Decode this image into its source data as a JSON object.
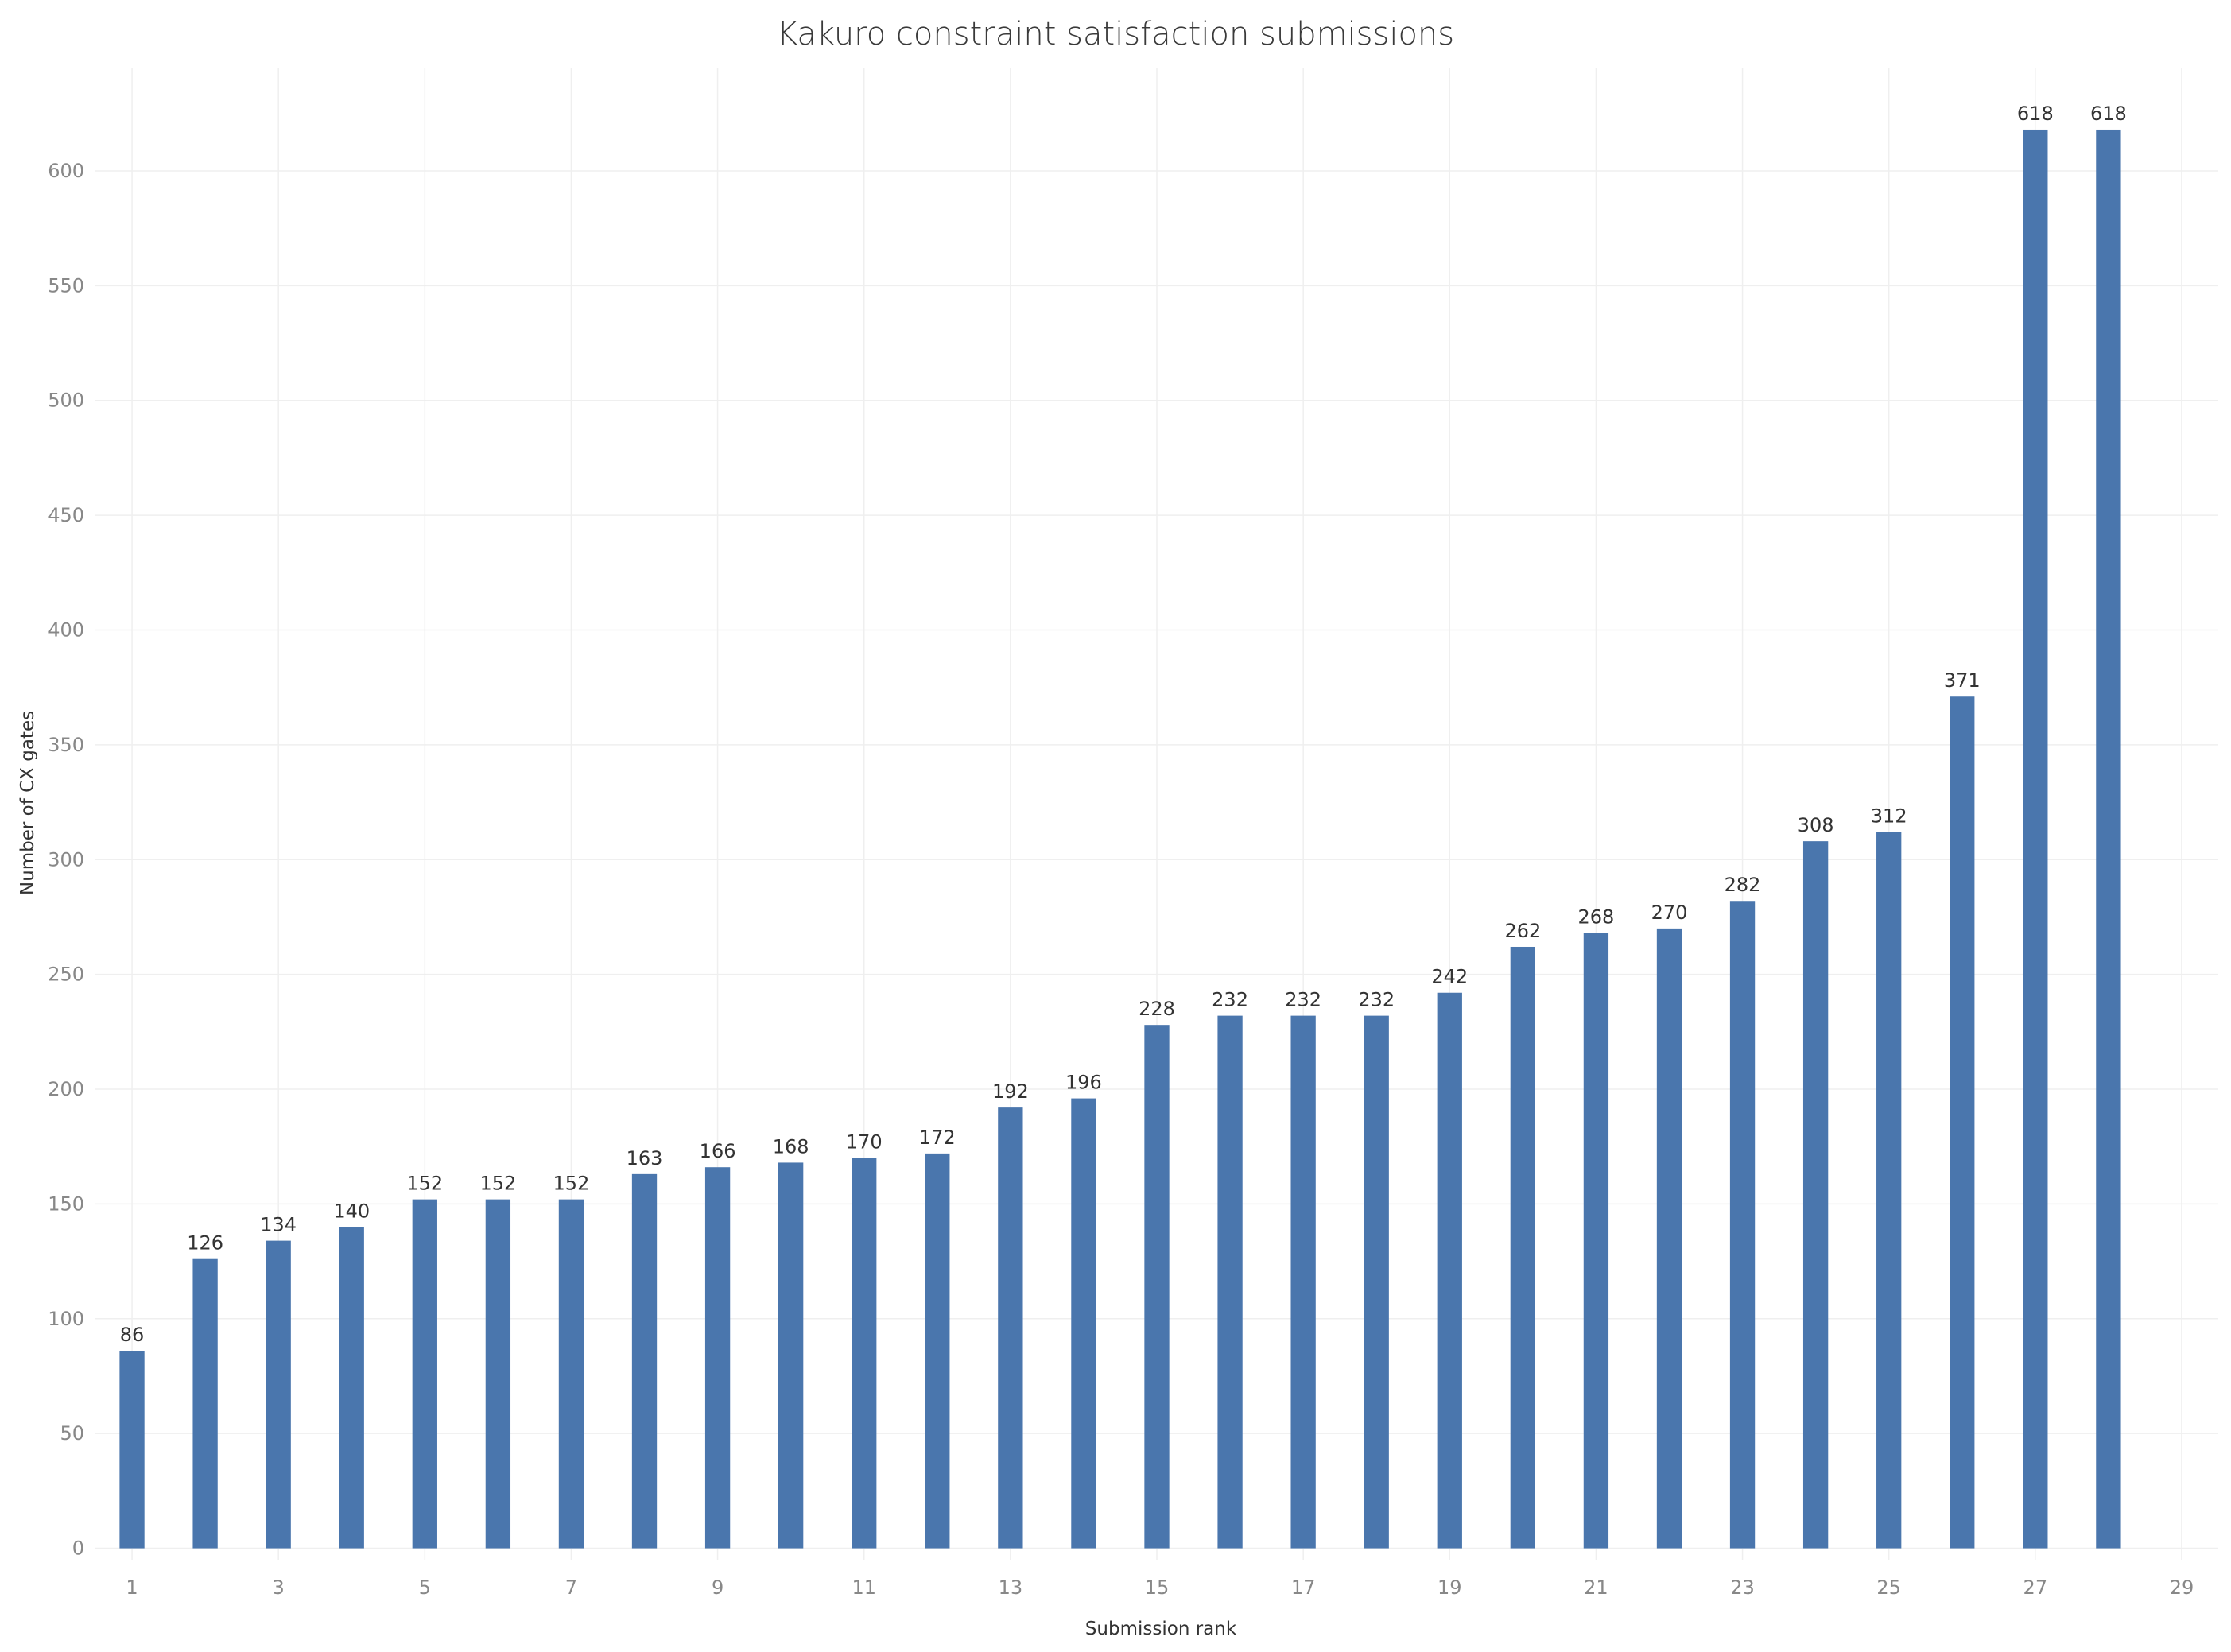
{
  "chart_data": {
    "type": "bar",
    "title": "Kakuro constraint satisfaction submissions",
    "xlabel": "Submission rank",
    "ylabel": "Number of CX gates",
    "x": [
      1,
      2,
      3,
      4,
      5,
      6,
      7,
      8,
      9,
      10,
      11,
      12,
      13,
      14,
      15,
      16,
      17,
      18,
      19,
      20,
      21,
      22,
      23,
      24,
      25,
      26,
      27,
      28
    ],
    "values": [
      86,
      126,
      134,
      140,
      152,
      152,
      152,
      163,
      166,
      168,
      170,
      172,
      192,
      196,
      228,
      232,
      232,
      232,
      242,
      262,
      268,
      270,
      282,
      308,
      312,
      371,
      618,
      618
    ],
    "x_ticks": [
      1,
      3,
      5,
      7,
      9,
      11,
      13,
      15,
      17,
      19,
      21,
      23,
      25,
      27,
      29
    ],
    "y_ticks": [
      0,
      50,
      100,
      150,
      200,
      250,
      300,
      350,
      400,
      450,
      500,
      550,
      600
    ],
    "xlim": [
      0.5,
      29.5
    ],
    "ylim": [
      -5,
      645
    ],
    "grid": true,
    "bar_color": "#4a76ad"
  }
}
